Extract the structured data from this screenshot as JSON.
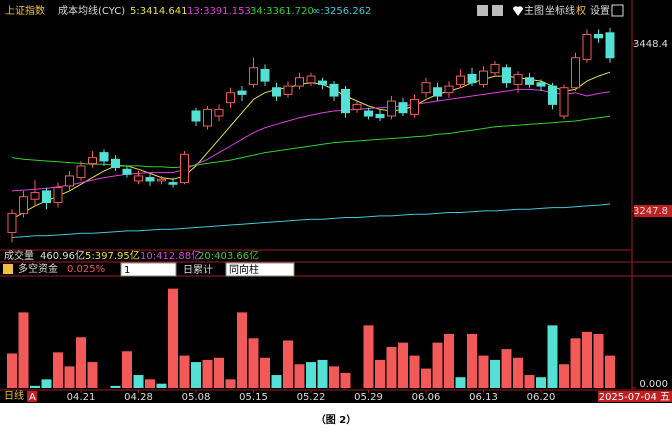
{
  "header": {
    "index_name": "上证指数",
    "indicator": "成本均线(CYC)",
    "ma_labels": [
      "5:3414.641",
      "13:3391.153",
      "34:3361.720",
      "∞:3256.262"
    ],
    "buttons": [
      "主图",
      "坐标线",
      "权",
      "设置"
    ]
  },
  "volume_row": {
    "label": "成交量",
    "value": "460.96亿",
    "ma_labels": [
      "5:397.95亿",
      "10:412.88亿",
      "20:403.66亿"
    ]
  },
  "fund_row": {
    "label": "多空资金",
    "value": "0.025%",
    "select1": "1",
    "mode": "日累计",
    "select2": "同向柱"
  },
  "footer": {
    "period": "日线",
    "badge": "A"
  },
  "caption": "（图 2）",
  "chart_data": [
    {
      "type": "candlestick",
      "up_color": "#f25a5a",
      "down_color": "#54e0d4",
      "ylim": [
        3207,
        3487
      ],
      "yticks": [
        3448.4,
        3247.8
      ],
      "open": [
        3222,
        3245,
        3262,
        3272,
        3258,
        3278,
        3288,
        3305,
        3318,
        3310,
        3298,
        3284,
        3288,
        3284,
        3282,
        3282,
        3368,
        3350,
        3362,
        3378,
        3392,
        3400,
        3418,
        3396,
        3388,
        3398,
        3402,
        3404,
        3400,
        3394,
        3370,
        3368,
        3364,
        3362,
        3378,
        3364,
        3390,
        3396,
        3390,
        3400,
        3412,
        3400,
        3414,
        3420,
        3400,
        3408,
        3402,
        3398,
        3362,
        3396,
        3430,
        3460,
        3462
      ],
      "high": [
        3250,
        3272,
        3285,
        3276,
        3282,
        3296,
        3308,
        3320,
        3322,
        3315,
        3302,
        3296,
        3292,
        3290,
        3288,
        3320,
        3372,
        3374,
        3376,
        3396,
        3398,
        3432,
        3424,
        3402,
        3404,
        3414,
        3414,
        3408,
        3404,
        3398,
        3380,
        3372,
        3370,
        3386,
        3384,
        3388,
        3408,
        3402,
        3404,
        3418,
        3420,
        3422,
        3428,
        3424,
        3416,
        3414,
        3406,
        3402,
        3400,
        3438,
        3466,
        3466,
        3468
      ],
      "low": [
        3210,
        3240,
        3255,
        3250,
        3252,
        3272,
        3284,
        3300,
        3302,
        3296,
        3288,
        3280,
        3278,
        3280,
        3276,
        3280,
        3350,
        3346,
        3356,
        3372,
        3380,
        3396,
        3398,
        3380,
        3384,
        3394,
        3398,
        3394,
        3380,
        3360,
        3366,
        3358,
        3356,
        3358,
        3362,
        3360,
        3384,
        3380,
        3384,
        3396,
        3398,
        3396,
        3410,
        3396,
        3390,
        3396,
        3392,
        3370,
        3358,
        3392,
        3426,
        3450,
        3426
      ],
      "close": [
        3245,
        3265,
        3270,
        3258,
        3276,
        3290,
        3302,
        3312,
        3308,
        3300,
        3292,
        3290,
        3284,
        3286,
        3280,
        3316,
        3356,
        3370,
        3370,
        3390,
        3388,
        3420,
        3404,
        3386,
        3398,
        3408,
        3410,
        3400,
        3386,
        3366,
        3376,
        3362,
        3360,
        3380,
        3366,
        3382,
        3402,
        3386,
        3398,
        3410,
        3402,
        3416,
        3424,
        3402,
        3412,
        3400,
        3398,
        3376,
        3396,
        3432,
        3460,
        3456,
        3432
      ],
      "series": [
        {
          "color": "#e8e040",
          "values": [
            3238,
            3246,
            3254,
            3260,
            3266,
            3272,
            3280,
            3288,
            3296,
            3302,
            3302,
            3298,
            3293,
            3288,
            3286,
            3290,
            3302,
            3318,
            3334,
            3350,
            3366,
            3382,
            3390,
            3394,
            3396,
            3400,
            3402,
            3400,
            3394,
            3386,
            3380,
            3374,
            3370,
            3368,
            3370,
            3374,
            3382,
            3388,
            3392,
            3396,
            3402,
            3406,
            3410,
            3410,
            3408,
            3406,
            3404,
            3398,
            3392,
            3394,
            3404,
            3410,
            3414.641
          ]
        },
        {
          "color": "#e040e0",
          "values": [
            3272,
            3273,
            3274,
            3275,
            3277,
            3279,
            3282,
            3285,
            3288,
            3290,
            3292,
            3293,
            3294,
            3294,
            3294,
            3298,
            3304,
            3310,
            3318,
            3326,
            3334,
            3342,
            3348,
            3352,
            3356,
            3360,
            3363,
            3366,
            3368,
            3369,
            3370,
            3371,
            3372,
            3373,
            3374,
            3376,
            3378,
            3380,
            3382,
            3384,
            3386,
            3388,
            3390,
            3392,
            3394,
            3394,
            3393,
            3390,
            3388,
            3390,
            3386,
            3389,
            3391.153
          ]
        },
        {
          "color": "#30d030",
          "values": [
            3312,
            3310,
            3309,
            3308,
            3307,
            3306,
            3305,
            3304,
            3304,
            3303,
            3302,
            3302,
            3301,
            3301,
            3300,
            3301,
            3303,
            3305,
            3307,
            3309,
            3312,
            3315,
            3318,
            3320,
            3322,
            3324,
            3326,
            3328,
            3330,
            3331,
            3332,
            3333,
            3334,
            3335,
            3336,
            3337,
            3338,
            3340,
            3341,
            3343,
            3345,
            3347,
            3349,
            3350,
            3351,
            3352,
            3353,
            3354,
            3355,
            3356,
            3358,
            3360,
            3361.72
          ]
        },
        {
          "color": "#40c8d8",
          "values": [
            3216,
            3217,
            3218,
            3218,
            3219,
            3220,
            3221,
            3221,
            3222,
            3223,
            3224,
            3224,
            3225,
            3226,
            3226,
            3227,
            3228,
            3229,
            3230,
            3231,
            3232,
            3233,
            3234,
            3235,
            3236,
            3237,
            3238,
            3238,
            3239,
            3240,
            3240,
            3241,
            3242,
            3242,
            3243,
            3244,
            3244,
            3245,
            3246,
            3246,
            3247,
            3248,
            3248,
            3249,
            3250,
            3250,
            3251,
            3252,
            3252,
            3253,
            3254,
            3255,
            3256.262
          ]
        }
      ]
    },
    {
      "type": "bar",
      "categories": [
        null,
        null,
        null,
        null,
        null,
        null,
        "04.21",
        null,
        null,
        null,
        null,
        "04.28",
        null,
        null,
        null,
        null,
        "05.08",
        null,
        null,
        null,
        null,
        "05.15",
        null,
        null,
        null,
        null,
        "05.22",
        null,
        null,
        null,
        null,
        "05.29",
        null,
        null,
        null,
        null,
        "06.06",
        null,
        null,
        null,
        null,
        "06.13",
        null,
        null,
        null,
        null,
        "06.20",
        null,
        null,
        null,
        null,
        null,
        "2025-07-04 五"
      ],
      "ylim": [
        0,
        100
      ],
      "yticks": [
        {
          "value": 0,
          "label": "0.000"
        }
      ],
      "values": [
        32,
        70,
        2,
        8,
        33,
        20,
        47,
        24,
        0,
        2,
        34,
        12,
        8,
        4,
        92,
        30,
        24,
        26,
        28,
        8,
        70,
        46,
        28,
        12,
        44,
        22,
        24,
        26,
        20,
        14,
        0,
        58,
        26,
        38,
        42,
        30,
        18,
        42,
        50,
        10,
        50,
        30,
        26,
        36,
        28,
        12,
        10,
        58,
        22,
        46,
        52,
        50,
        30
      ],
      "colors": [
        "#f25a5a",
        "#f25a5a",
        "#54e0d4",
        "#54e0d4",
        "#f25a5a",
        "#f25a5a",
        "#f25a5a",
        "#f25a5a",
        "#f25a5a",
        "#54e0d4",
        "#f25a5a",
        "#54e0d4",
        "#f25a5a",
        "#54e0d4",
        "#f25a5a",
        "#f25a5a",
        "#54e0d4",
        "#f25a5a",
        "#f25a5a",
        "#f25a5a",
        "#f25a5a",
        "#f25a5a",
        "#f25a5a",
        "#54e0d4",
        "#f25a5a",
        "#f25a5a",
        "#54e0d4",
        "#54e0d4",
        "#f25a5a",
        "#f25a5a",
        "#f25a5a",
        "#f25a5a",
        "#f25a5a",
        "#f25a5a",
        "#f25a5a",
        "#f25a5a",
        "#f25a5a",
        "#f25a5a",
        "#f25a5a",
        "#54e0d4",
        "#f25a5a",
        "#f25a5a",
        "#54e0d4",
        "#f25a5a",
        "#f25a5a",
        "#f25a5a",
        "#54e0d4",
        "#54e0d4",
        "#f25a5a",
        "#f25a5a",
        "#f25a5a",
        "#f25a5a",
        "#f25a5a"
      ]
    }
  ]
}
